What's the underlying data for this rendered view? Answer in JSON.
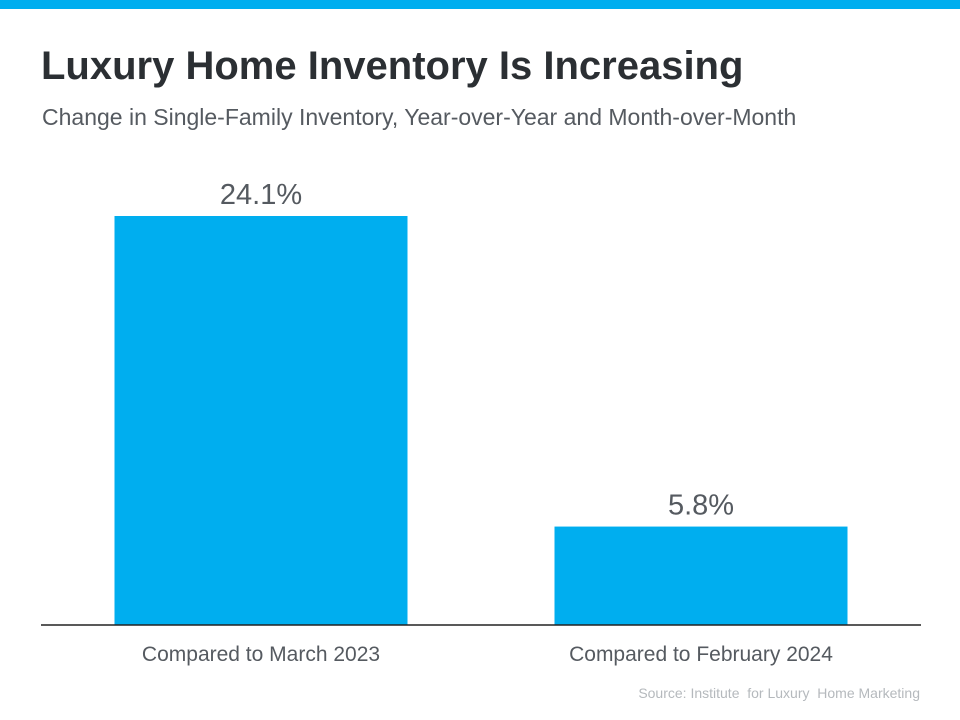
{
  "header": {
    "title": "Luxury Home Inventory Is Increasing",
    "subtitle": "Change in Single-Family Inventory, Year-over-Year and Month-over-Month"
  },
  "footer": {
    "source": "Source: Institute  for Luxury  Home Marketing"
  },
  "colors": {
    "accent": "#00aeef",
    "bar": "#00aeef",
    "axis": "#222222",
    "text": "#555a60"
  },
  "chart_data": {
    "type": "bar",
    "categories": [
      "Compared to March 2023",
      "Compared to February 2024"
    ],
    "values": [
      24.1,
      5.8
    ],
    "value_labels": [
      "24.1%",
      "5.8%"
    ],
    "title": "Luxury Home Inventory Is Increasing",
    "subtitle": "Change in Single-Family Inventory, Year-over-Year and Month-over-Month",
    "xlabel": "",
    "ylabel": "",
    "ylim": [
      0,
      30
    ],
    "grid": false,
    "legend": "none"
  }
}
